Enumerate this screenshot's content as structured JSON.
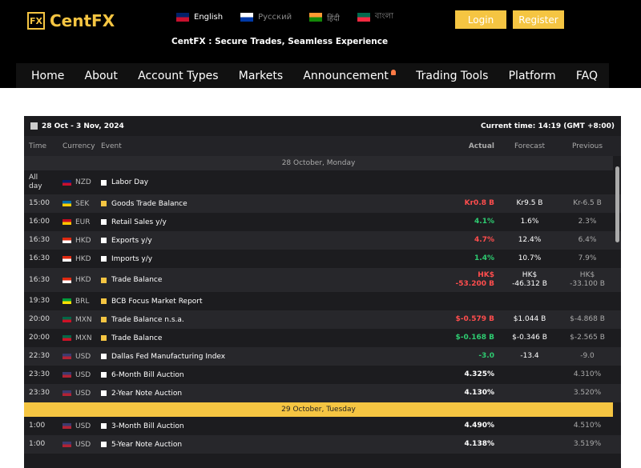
{
  "header": {
    "logo": "CentFX",
    "languages": [
      "English",
      "Русский",
      "हिंदी",
      "বাংলা"
    ],
    "tagline": "CentFX : Secure Trades, Seamless Experience",
    "buttons": [
      "Login",
      "Register"
    ]
  },
  "nav": [
    "Home",
    "About",
    "Account Types",
    "Markets",
    "Announcement",
    "Trading Tools",
    "Platform",
    "FAQ"
  ],
  "calendar": {
    "date_range": "28 Oct - 3 Nov, 2024",
    "current_time": "Current time: 14:19 (GMT +8:00)",
    "columns": [
      "Time",
      "Currency",
      "Event",
      "Actual",
      "Forecast",
      "Previous"
    ],
    "days": [
      {
        "label": "28 October, Monday",
        "highlight": false,
        "events": [
          {
            "time": "All day",
            "currency": "NZD",
            "flag": [
              "#012169",
              "#c8102e"
            ],
            "impact": "#ffffff",
            "event": "Labor Day",
            "actual": null,
            "actual_color": null,
            "forecast": null,
            "previous": null
          },
          {
            "time": "15:00",
            "currency": "SEK",
            "flag": [
              "#006aa7",
              "#fecc00"
            ],
            "impact": "#f5c542",
            "event": "Goods Trade Balance",
            "actual": "Kr0.8 B",
            "actual_color": "#ff4d4d",
            "forecast": "Kr9.5 B",
            "previous": "Kr-6.5 B"
          },
          {
            "time": "16:00",
            "currency": "EUR",
            "flag": [
              "#c60b1e",
              "#ffc400"
            ],
            "impact": "#ffffff",
            "event": "Retail Sales y/y",
            "actual": "4.1%",
            "actual_color": "#2ecc71",
            "forecast": "1.6%",
            "previous": "2.3%"
          },
          {
            "time": "16:30",
            "currency": "HKD",
            "flag": [
              "#de2910",
              "#ffffff"
            ],
            "impact": "#ffffff",
            "event": "Exports y/y",
            "actual": "4.7%",
            "actual_color": "#ff4d4d",
            "forecast": "12.4%",
            "previous": "6.4%"
          },
          {
            "time": "16:30",
            "currency": "HKD",
            "flag": [
              "#de2910",
              "#ffffff"
            ],
            "impact": "#ffffff",
            "event": "Imports y/y",
            "actual": "1.4%",
            "actual_color": "#2ecc71",
            "forecast": "10.7%",
            "previous": "7.9%"
          },
          {
            "time": "16:30",
            "currency": "HKD",
            "flag": [
              "#de2910",
              "#ffffff"
            ],
            "impact": "#f5c542",
            "event": "Trade Balance",
            "actual": "HK$\n-53.200 B",
            "actual_color": "#ff4d4d",
            "forecast": "HK$\n-46.312 B",
            "previous": "HK$\n-33.100 B"
          },
          {
            "time": "19:30",
            "currency": "BRL",
            "flag": [
              "#009c3b",
              "#ffdf00"
            ],
            "impact": "#f5c542",
            "event": "BCB Focus Market Report",
            "actual": null,
            "actual_color": null,
            "forecast": null,
            "previous": null
          },
          {
            "time": "20:00",
            "currency": "MXN",
            "flag": [
              "#006847",
              "#ce1126"
            ],
            "impact": "#f5c542",
            "event": "Trade Balance n.s.a.",
            "actual": "$-0.579 B",
            "actual_color": "#ff4d4d",
            "forecast": "$1.044 B",
            "previous": "$-4.868 B"
          },
          {
            "time": "20:00",
            "currency": "MXN",
            "flag": [
              "#006847",
              "#ce1126"
            ],
            "impact": "#f5c542",
            "event": "Trade Balance",
            "actual": "$-0.168 B",
            "actual_color": "#2ecc71",
            "forecast": "$-0.346 B",
            "previous": "$-2.565 B"
          },
          {
            "time": "22:30",
            "currency": "USD",
            "flag": [
              "#3c3b6e",
              "#b22234"
            ],
            "impact": "#ffffff",
            "event": "Dallas Fed Manufacturing Index",
            "actual": "-3.0",
            "actual_color": "#2ecc71",
            "forecast": "-13.4",
            "previous": "-9.0"
          },
          {
            "time": "23:30",
            "currency": "USD",
            "flag": [
              "#3c3b6e",
              "#b22234"
            ],
            "impact": "#ffffff",
            "event": "6-Month Bill Auction",
            "actual": "4.325%",
            "actual_color": "#ffffff",
            "forecast": null,
            "previous": "4.310%"
          },
          {
            "time": "23:30",
            "currency": "USD",
            "flag": [
              "#3c3b6e",
              "#b22234"
            ],
            "impact": "#ffffff",
            "event": "2-Year Note Auction",
            "actual": "4.130%",
            "actual_color": "#ffffff",
            "forecast": null,
            "previous": "3.520%"
          }
        ]
      },
      {
        "label": "29 October, Tuesday",
        "highlight": true,
        "events": [
          {
            "time": "1:00",
            "currency": "USD",
            "flag": [
              "#3c3b6e",
              "#b22234"
            ],
            "impact": "#ffffff",
            "event": "3-Month Bill Auction",
            "actual": "4.490%",
            "actual_color": "#ffffff",
            "forecast": null,
            "previous": "4.510%"
          },
          {
            "time": "1:00",
            "currency": "USD",
            "flag": [
              "#3c3b6e",
              "#b22234"
            ],
            "impact": "#ffffff",
            "event": "5-Year Note Auction",
            "actual": "4.138%",
            "actual_color": "#ffffff",
            "forecast": null,
            "previous": "3.519%"
          }
        ]
      }
    ]
  }
}
